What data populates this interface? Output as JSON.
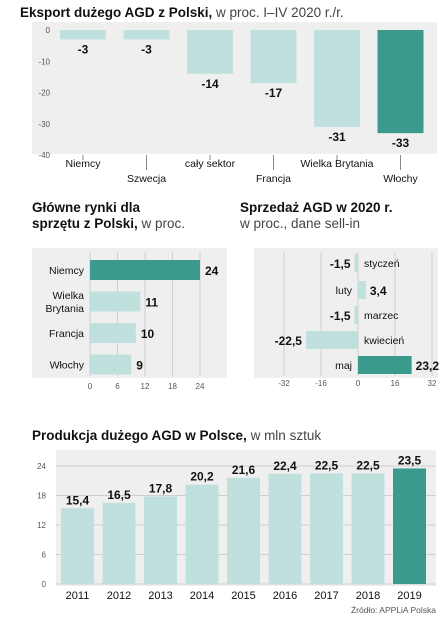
{
  "chart_data": [
    {
      "type": "bar",
      "title_bold": "Eksport dużego AGD z Polski,",
      "title_light": "w proc. I–IV 2020 r./r.",
      "categories": [
        "Niemcy",
        "Szwecja",
        "cały sektor",
        "Francja",
        "Wielka Brytania",
        "Włochy"
      ],
      "values": [
        -3,
        -3,
        -14,
        -17,
        -31,
        -33
      ],
      "value_labels": [
        "-3",
        "-3",
        "-14",
        "-17",
        "-31",
        "-33"
      ],
      "ylim": [
        -40,
        0
      ],
      "yticks": [
        0,
        -10,
        -20,
        -30,
        -40
      ],
      "ytick_labels": [
        "0",
        "-10",
        "-20",
        "-30",
        "-40"
      ],
      "highlight_color": "#3a9a8b",
      "bar_color": "#bfe0dc",
      "grid": false
    },
    {
      "type": "bar",
      "orientation": "horizontal",
      "title_bold_1": "Główne rynki dla",
      "title_bold_2": "sprzętu z Polski,",
      "title_light": "w proc.",
      "categories": [
        "Niemcy",
        "Wielka Brytania",
        "Francja",
        "Włochy"
      ],
      "category_lines": [
        [
          "Niemcy"
        ],
        [
          "Wielka",
          "Brytania"
        ],
        [
          "Francja"
        ],
        [
          "Włochy"
        ]
      ],
      "values": [
        24,
        11,
        10,
        9
      ],
      "value_labels": [
        "24",
        "11",
        "10",
        "9"
      ],
      "xlim": [
        0,
        24
      ],
      "xticks": [
        0,
        6,
        12,
        18,
        24
      ],
      "xtick_labels": [
        "0",
        "6",
        "12",
        "18",
        "24"
      ],
      "highlight_color": "#3a9a8b",
      "bar_color": "#bfe0dc",
      "grid": true
    },
    {
      "type": "bar",
      "orientation": "horizontal",
      "title_bold": "Sprzedaż AGD w 2020 r.",
      "title_light": "w proc., dane sell-in",
      "categories": [
        "styczeń",
        "luty",
        "marzec",
        "kwiecień",
        "maj"
      ],
      "values": [
        -1.5,
        3.4,
        -1.5,
        -22.5,
        23.2
      ],
      "value_labels": [
        "-1,5",
        "3,4",
        "-1,5",
        "-22,5",
        "23,2"
      ],
      "xlim": [
        -32,
        32
      ],
      "xticks": [
        -32,
        -16,
        0,
        16,
        32
      ],
      "xtick_labels": [
        "-32",
        "-16",
        "0",
        "16",
        "32"
      ],
      "highlight_color": "#3a9a8b",
      "bar_color": "#bfe0dc",
      "grid": true
    },
    {
      "type": "bar",
      "title_bold": "Produkcja dużego AGD w Polsce,",
      "title_light": "w mln sztuk",
      "categories": [
        "2011",
        "2012",
        "2013",
        "2014",
        "2015",
        "2016",
        "2017",
        "2018",
        "2019"
      ],
      "values": [
        15.4,
        16.5,
        17.8,
        20.2,
        21.6,
        22.4,
        22.5,
        22.5,
        23.5
      ],
      "value_labels": [
        "15,4",
        "16,5",
        "17,8",
        "20,2",
        "21,6",
        "22,4",
        "22,5",
        "22,5",
        "23,5"
      ],
      "ylim": [
        0,
        24
      ],
      "yticks": [
        0,
        6,
        12,
        18,
        24
      ],
      "ytick_labels": [
        "0",
        "6",
        "12",
        "18",
        "24"
      ],
      "highlight_color": "#3a9a8b",
      "bar_color": "#bfe0dc",
      "grid": true
    }
  ],
  "source": "Źródło: APPLiA Polska"
}
